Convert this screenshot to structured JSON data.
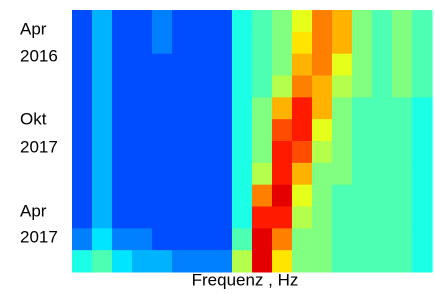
{
  "chart_data": {
    "type": "heatmap",
    "y_labels": [
      [
        "Apr",
        "2016"
      ],
      [
        "Okt",
        "2017"
      ],
      [
        "Apr",
        "2017"
      ]
    ],
    "x_label": "Frequenz , Hz",
    "colormap": "jet",
    "values": [
      [
        0.2,
        0.3,
        0.2,
        0.2,
        0.25,
        0.2,
        0.2,
        0.2,
        0.4,
        0.45,
        0.5,
        0.6,
        0.75,
        0.7,
        0.5,
        0.45,
        0.5,
        0.45
      ],
      [
        0.2,
        0.3,
        0.2,
        0.2,
        0.25,
        0.2,
        0.2,
        0.2,
        0.4,
        0.45,
        0.5,
        0.65,
        0.75,
        0.7,
        0.5,
        0.45,
        0.5,
        0.45
      ],
      [
        0.2,
        0.3,
        0.2,
        0.2,
        0.2,
        0.2,
        0.2,
        0.2,
        0.4,
        0.45,
        0.5,
        0.7,
        0.75,
        0.6,
        0.5,
        0.45,
        0.5,
        0.45
      ],
      [
        0.2,
        0.3,
        0.2,
        0.2,
        0.2,
        0.2,
        0.2,
        0.2,
        0.4,
        0.45,
        0.55,
        0.75,
        0.7,
        0.55,
        0.5,
        0.45,
        0.5,
        0.45
      ],
      [
        0.2,
        0.3,
        0.2,
        0.2,
        0.2,
        0.2,
        0.2,
        0.2,
        0.4,
        0.5,
        0.7,
        0.85,
        0.7,
        0.5,
        0.45,
        0.45,
        0.45,
        0.4
      ],
      [
        0.2,
        0.3,
        0.2,
        0.2,
        0.2,
        0.2,
        0.2,
        0.2,
        0.4,
        0.5,
        0.8,
        0.85,
        0.6,
        0.5,
        0.45,
        0.45,
        0.45,
        0.4
      ],
      [
        0.2,
        0.3,
        0.2,
        0.2,
        0.2,
        0.2,
        0.2,
        0.2,
        0.4,
        0.5,
        0.85,
        0.8,
        0.55,
        0.5,
        0.45,
        0.45,
        0.45,
        0.4
      ],
      [
        0.2,
        0.3,
        0.2,
        0.2,
        0.2,
        0.2,
        0.2,
        0.2,
        0.4,
        0.55,
        0.85,
        0.7,
        0.5,
        0.5,
        0.45,
        0.45,
        0.45,
        0.4
      ],
      [
        0.2,
        0.3,
        0.2,
        0.2,
        0.2,
        0.2,
        0.2,
        0.2,
        0.4,
        0.75,
        0.9,
        0.6,
        0.5,
        0.45,
        0.45,
        0.45,
        0.45,
        0.4
      ],
      [
        0.2,
        0.3,
        0.2,
        0.2,
        0.2,
        0.2,
        0.2,
        0.2,
        0.4,
        0.85,
        0.85,
        0.55,
        0.5,
        0.45,
        0.45,
        0.45,
        0.45,
        0.4
      ],
      [
        0.25,
        0.35,
        0.25,
        0.25,
        0.2,
        0.2,
        0.2,
        0.2,
        0.45,
        0.9,
        0.75,
        0.5,
        0.5,
        0.45,
        0.45,
        0.45,
        0.45,
        0.4
      ],
      [
        0.4,
        0.45,
        0.35,
        0.3,
        0.3,
        0.25,
        0.25,
        0.25,
        0.55,
        0.9,
        0.65,
        0.5,
        0.5,
        0.45,
        0.45,
        0.45,
        0.45,
        0.4
      ]
    ]
  }
}
